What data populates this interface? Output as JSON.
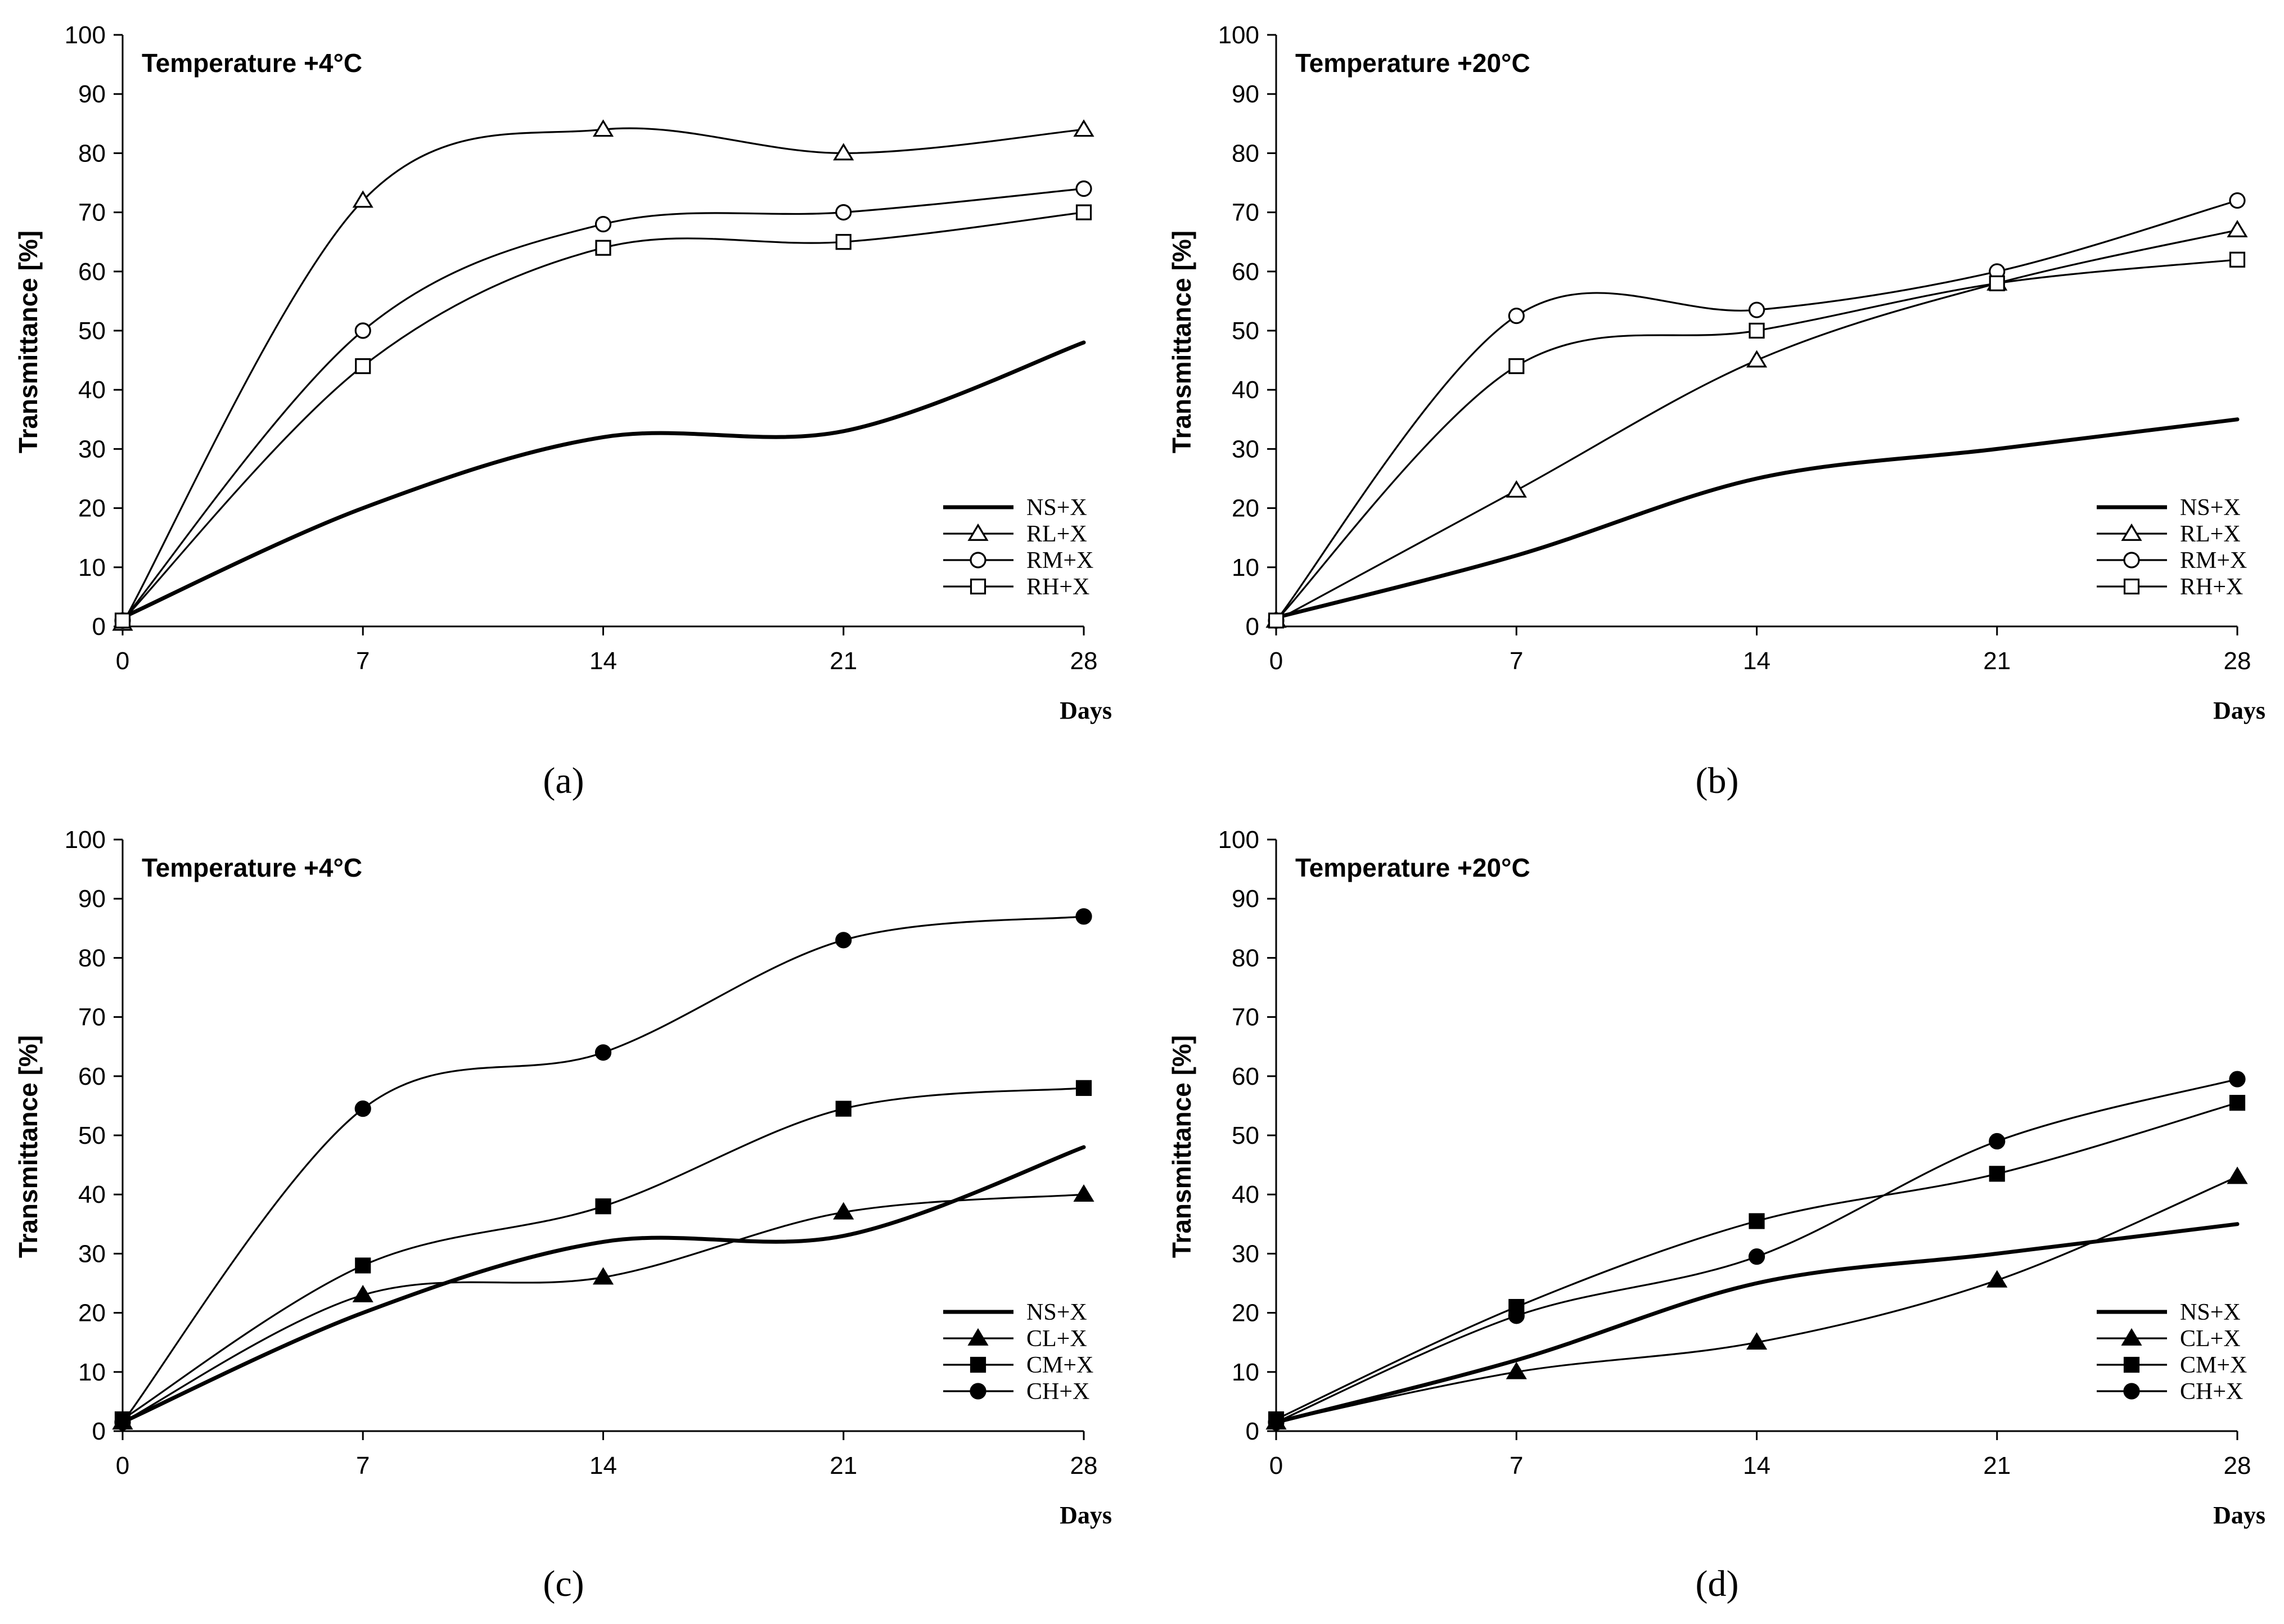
{
  "chart_data": [
    {
      "id": "a",
      "type": "line",
      "title": "Temperature +4°C",
      "caption": "(a)",
      "xlabel": "Days",
      "ylabel": "Transmittance [%]",
      "x": [
        0,
        7,
        14,
        21,
        28
      ],
      "xticks": [
        "0",
        "7",
        "14",
        "21",
        "28"
      ],
      "ylim": [
        0,
        100
      ],
      "yticks": [
        "0",
        "10",
        "20",
        "30",
        "40",
        "50",
        "60",
        "70",
        "80",
        "90",
        "100"
      ],
      "legend_position": "bottom-right",
      "series": [
        {
          "name": "NS+X",
          "marker": "none",
          "thick": true,
          "values": [
            1.5,
            20,
            32,
            33,
            48
          ]
        },
        {
          "name": "RL+X",
          "marker": "triangle-open",
          "thick": false,
          "values": [
            0.5,
            72,
            84,
            80,
            84
          ]
        },
        {
          "name": "RM+X",
          "marker": "circle-open",
          "thick": false,
          "values": [
            1,
            50,
            68,
            70,
            74
          ]
        },
        {
          "name": "RH+X",
          "marker": "square-open",
          "thick": false,
          "values": [
            1,
            44,
            64,
            65,
            70
          ]
        }
      ]
    },
    {
      "id": "b",
      "type": "line",
      "title": "Temperature +20°C",
      "caption": "(b)",
      "xlabel": "Days",
      "ylabel": "Transmittance [%]",
      "x": [
        0,
        7,
        14,
        21,
        28
      ],
      "xticks": [
        "0",
        "7",
        "14",
        "21",
        "28"
      ],
      "ylim": [
        0,
        100
      ],
      "yticks": [
        "0",
        "10",
        "20",
        "30",
        "40",
        "50",
        "60",
        "70",
        "80",
        "90",
        "100"
      ],
      "legend_position": "bottom-right",
      "series": [
        {
          "name": "NS+X",
          "marker": "none",
          "thick": true,
          "values": [
            1.5,
            12,
            25,
            30,
            35
          ]
        },
        {
          "name": "RL+X",
          "marker": "triangle-open",
          "thick": false,
          "values": [
            1,
            23,
            45,
            58,
            67
          ]
        },
        {
          "name": "RM+X",
          "marker": "circle-open",
          "thick": false,
          "values": [
            1,
            52.5,
            53.5,
            60,
            72
          ]
        },
        {
          "name": "RH+X",
          "marker": "square-open",
          "thick": false,
          "values": [
            1,
            44,
            50,
            58,
            62
          ]
        }
      ]
    },
    {
      "id": "c",
      "type": "line",
      "title": "Temperature +4°C",
      "caption": "(c)",
      "xlabel": "Days",
      "ylabel": "Transmittance [%]",
      "x": [
        0,
        7,
        14,
        21,
        28
      ],
      "xticks": [
        "0",
        "7",
        "14",
        "21",
        "28"
      ],
      "ylim": [
        0,
        100
      ],
      "yticks": [
        "0",
        "10",
        "20",
        "30",
        "40",
        "50",
        "60",
        "70",
        "80",
        "90",
        "100"
      ],
      "legend_position": "bottom-right",
      "series": [
        {
          "name": "NS+X",
          "marker": "none",
          "thick": true,
          "values": [
            1.5,
            20,
            32,
            33,
            48
          ]
        },
        {
          "name": "CL+X",
          "marker": "triangle-filled",
          "thick": false,
          "values": [
            1.5,
            23,
            26,
            37,
            40
          ]
        },
        {
          "name": "CM+X",
          "marker": "square-filled",
          "thick": false,
          "values": [
            2,
            28,
            38,
            54.5,
            58
          ]
        },
        {
          "name": "CH+X",
          "marker": "circle-filled",
          "thick": false,
          "values": [
            1.5,
            54.5,
            64,
            83,
            87
          ]
        }
      ]
    },
    {
      "id": "d",
      "type": "line",
      "title": "Temperature +20°C",
      "caption": "(d)",
      "xlabel": "Days",
      "ylabel": "Transmittance [%]",
      "x": [
        0,
        7,
        14,
        21,
        28
      ],
      "xticks": [
        "0",
        "7",
        "14",
        "21",
        "28"
      ],
      "ylim": [
        0,
        100
      ],
      "yticks": [
        "0",
        "10",
        "20",
        "30",
        "40",
        "50",
        "60",
        "70",
        "80",
        "90",
        "100"
      ],
      "legend_position": "bottom-right",
      "series": [
        {
          "name": "NS+X",
          "marker": "none",
          "thick": true,
          "values": [
            1.5,
            12,
            25,
            30,
            35
          ]
        },
        {
          "name": "CL+X",
          "marker": "triangle-filled",
          "thick": false,
          "values": [
            1.5,
            10,
            15,
            25.5,
            43
          ]
        },
        {
          "name": "CM+X",
          "marker": "square-filled",
          "thick": false,
          "values": [
            2,
            21,
            35.5,
            43.5,
            55.5
          ]
        },
        {
          "name": "CH+X",
          "marker": "circle-filled",
          "thick": false,
          "values": [
            1.5,
            19.5,
            29.5,
            49,
            59.5
          ]
        }
      ]
    }
  ]
}
